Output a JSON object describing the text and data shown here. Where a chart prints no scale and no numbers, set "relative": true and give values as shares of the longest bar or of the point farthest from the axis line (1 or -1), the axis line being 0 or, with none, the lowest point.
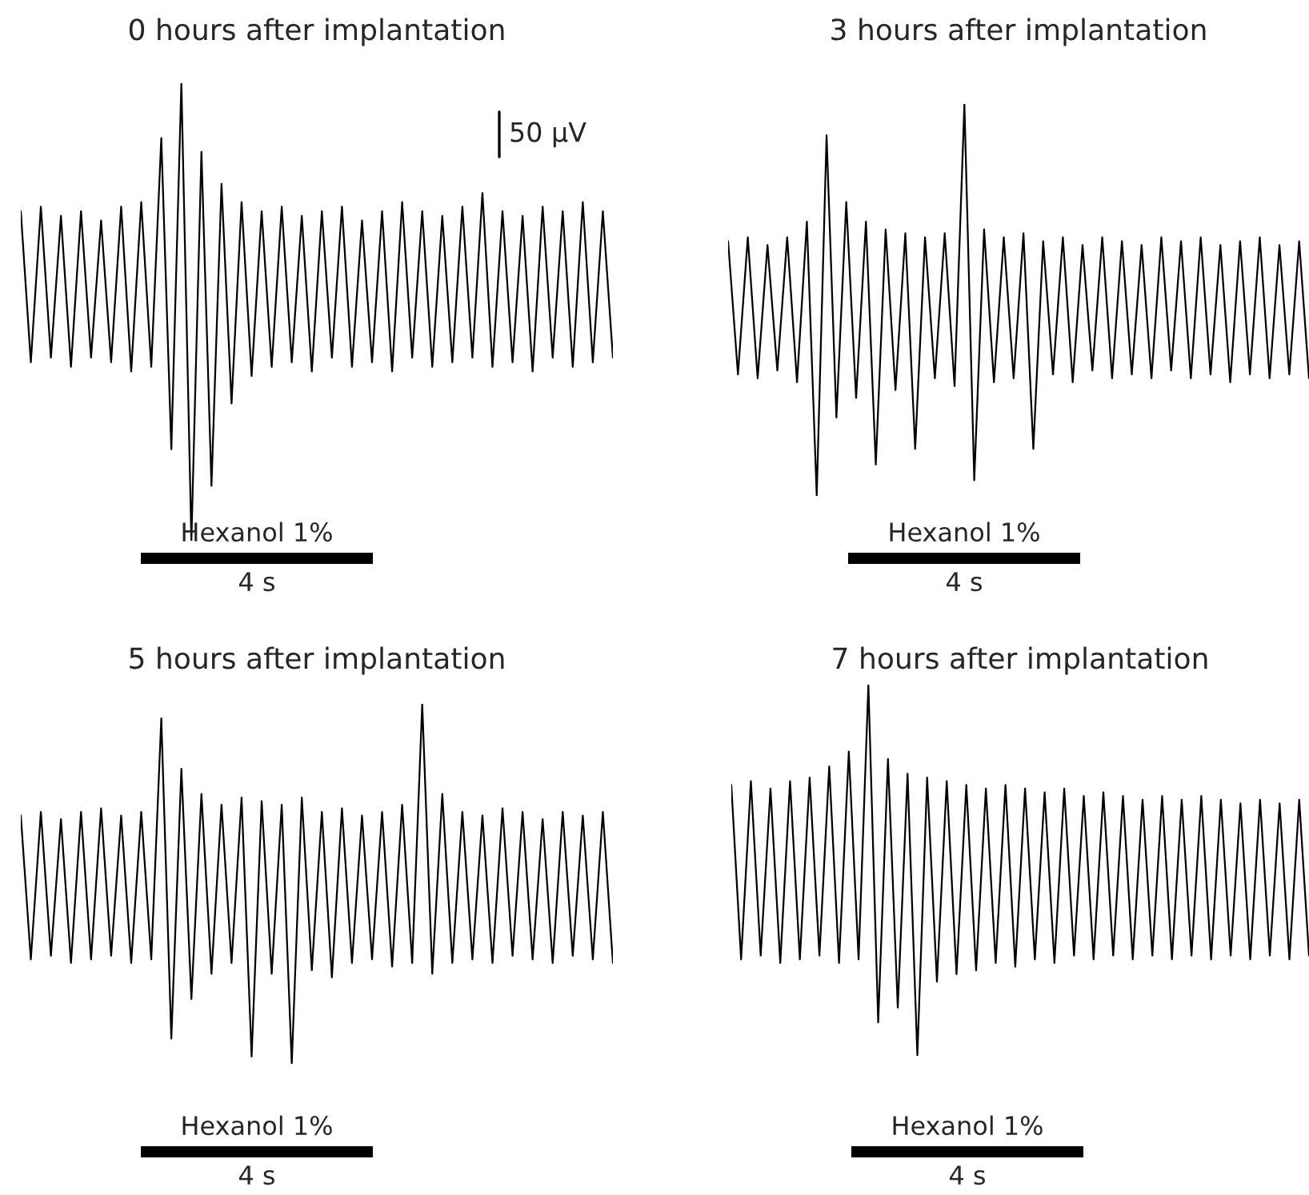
{
  "chart_data": [
    {
      "type": "line",
      "title": "0 hours after implantation",
      "relative": true,
      "categories": [
        null,
        null,
        null,
        null,
        null,
        null,
        null,
        null,
        null,
        null,
        null,
        null,
        null,
        null,
        null,
        null,
        null,
        null,
        null,
        null,
        null,
        null,
        null,
        null,
        null,
        null,
        null,
        null,
        null,
        null,
        null,
        null,
        null,
        null,
        null,
        null,
        null,
        null,
        null,
        null,
        null,
        null,
        null,
        null,
        null,
        null,
        null,
        null,
        null,
        null,
        null,
        null,
        null,
        null,
        null,
        null,
        null,
        null,
        null,
        null
      ],
      "series": [
        {
          "color": "#000000",
          "values": [
            0.72,
            0.39,
            0.73,
            0.4,
            0.71,
            0.38,
            0.72,
            0.4,
            0.7,
            0.39,
            0.73,
            0.37,
            0.74,
            0.38,
            0.88,
            0.2,
            1.0,
            0.0,
            0.85,
            0.12,
            0.78,
            0.3,
            0.74,
            0.36,
            0.72,
            0.38,
            0.73,
            0.39,
            0.71,
            0.37,
            0.72,
            0.4,
            0.73,
            0.38,
            0.7,
            0.39,
            0.72,
            0.37,
            0.74,
            0.4,
            0.72,
            0.38,
            0.71,
            0.39,
            0.73,
            0.4,
            0.76,
            0.38,
            0.72,
            0.39,
            0.71,
            0.37,
            0.73,
            0.4,
            0.72,
            0.38,
            0.74,
            0.39,
            0.72,
            0.4
          ]
        }
      ],
      "annotations": [
        "Hexanol 1%",
        "4 s",
        "50 µV"
      ]
    },
    {
      "type": "line",
      "title": "3 hours after implantation",
      "relative": true,
      "categories": [
        null,
        null,
        null,
        null,
        null,
        null,
        null,
        null,
        null,
        null,
        null,
        null,
        null,
        null,
        null,
        null,
        null,
        null,
        null,
        null,
        null,
        null,
        null,
        null,
        null,
        null,
        null,
        null,
        null,
        null,
        null,
        null,
        null,
        null,
        null,
        null,
        null,
        null,
        null,
        null,
        null,
        null,
        null,
        null,
        null,
        null,
        null,
        null,
        null,
        null,
        null,
        null,
        null,
        null,
        null,
        null,
        null,
        null,
        null,
        null
      ],
      "series": [
        {
          "color": "#000000",
          "values": [
            0.65,
            0.31,
            0.66,
            0.3,
            0.64,
            0.32,
            0.66,
            0.29,
            0.7,
            0.0,
            0.92,
            0.2,
            0.75,
            0.25,
            0.7,
            0.08,
            0.68,
            0.27,
            0.67,
            0.12,
            0.66,
            0.3,
            0.67,
            0.28,
            1.0,
            0.04,
            0.68,
            0.29,
            0.66,
            0.3,
            0.67,
            0.12,
            0.65,
            0.31,
            0.66,
            0.29,
            0.64,
            0.32,
            0.66,
            0.3,
            0.65,
            0.31,
            0.64,
            0.3,
            0.66,
            0.32,
            0.65,
            0.3,
            0.66,
            0.31,
            0.64,
            0.29,
            0.65,
            0.31,
            0.66,
            0.3,
            0.64,
            0.31,
            0.65,
            0.3
          ]
        }
      ],
      "annotations": [
        "Hexanol 1%",
        "4 s"
      ]
    },
    {
      "type": "line",
      "title": "5 hours after implantation",
      "relative": true,
      "categories": [
        null,
        null,
        null,
        null,
        null,
        null,
        null,
        null,
        null,
        null,
        null,
        null,
        null,
        null,
        null,
        null,
        null,
        null,
        null,
        null,
        null,
        null,
        null,
        null,
        null,
        null,
        null,
        null,
        null,
        null,
        null,
        null,
        null,
        null,
        null,
        null,
        null,
        null,
        null,
        null,
        null,
        null,
        null,
        null,
        null,
        null,
        null,
        null,
        null,
        null,
        null,
        null,
        null,
        null,
        null,
        null,
        null,
        null,
        null,
        null
      ],
      "series": [
        {
          "color": "#000000",
          "values": [
            0.69,
            0.29,
            0.7,
            0.3,
            0.68,
            0.28,
            0.7,
            0.29,
            0.71,
            0.3,
            0.69,
            0.28,
            0.7,
            0.29,
            0.96,
            0.07,
            0.82,
            0.18,
            0.75,
            0.25,
            0.72,
            0.28,
            0.74,
            0.02,
            0.73,
            0.25,
            0.72,
            0.0,
            0.74,
            0.26,
            0.7,
            0.24,
            0.71,
            0.28,
            0.69,
            0.29,
            0.7,
            0.27,
            0.72,
            0.28,
            1.0,
            0.25,
            0.75,
            0.28,
            0.7,
            0.29,
            0.69,
            0.28,
            0.71,
            0.3,
            0.7,
            0.29,
            0.68,
            0.28,
            0.7,
            0.3,
            0.69,
            0.29,
            0.7,
            0.28
          ]
        }
      ],
      "annotations": [
        "Hexanol 1%",
        "4 s"
      ]
    },
    {
      "type": "line",
      "title": "7 hours after implantation",
      "relative": true,
      "categories": [
        null,
        null,
        null,
        null,
        null,
        null,
        null,
        null,
        null,
        null,
        null,
        null,
        null,
        null,
        null,
        null,
        null,
        null,
        null,
        null,
        null,
        null,
        null,
        null,
        null,
        null,
        null,
        null,
        null,
        null,
        null,
        null,
        null,
        null,
        null,
        null,
        null,
        null,
        null,
        null,
        null,
        null,
        null,
        null,
        null,
        null,
        null,
        null,
        null,
        null,
        null,
        null,
        null,
        null,
        null,
        null,
        null,
        null,
        null,
        null
      ],
      "series": [
        {
          "color": "#000000",
          "values": [
            0.73,
            0.26,
            0.74,
            0.27,
            0.72,
            0.25,
            0.74,
            0.26,
            0.75,
            0.27,
            0.78,
            0.25,
            0.82,
            0.26,
            1.0,
            0.09,
            0.8,
            0.13,
            0.76,
            0.0,
            0.75,
            0.2,
            0.74,
            0.22,
            0.73,
            0.23,
            0.72,
            0.25,
            0.73,
            0.24,
            0.72,
            0.26,
            0.71,
            0.25,
            0.72,
            0.27,
            0.7,
            0.26,
            0.71,
            0.27,
            0.7,
            0.26,
            0.69,
            0.27,
            0.7,
            0.26,
            0.69,
            0.27,
            0.7,
            0.26,
            0.69,
            0.27,
            0.68,
            0.26,
            0.69,
            0.27,
            0.68,
            0.26,
            0.69,
            0.27
          ]
        }
      ],
      "annotations": [
        "Hexanol 1%",
        "4 s"
      ]
    }
  ]
}
